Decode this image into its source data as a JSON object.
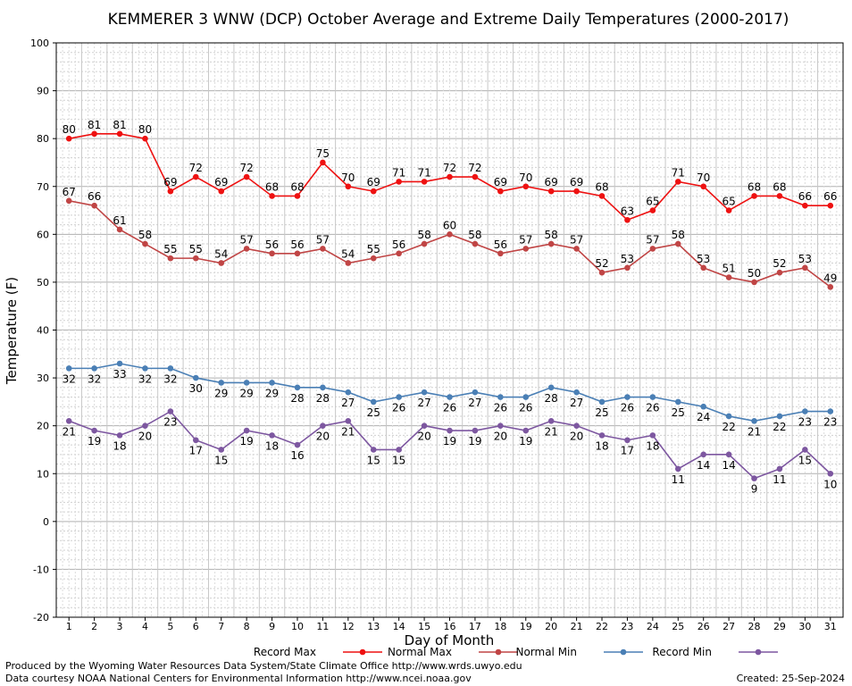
{
  "chart_data": {
    "type": "line",
    "title": "KEMMERER 3 WNW (DCP) October Average and Extreme Daily Temperatures (2000-2017)",
    "xlabel": "Day of Month",
    "ylabel": "Temperature (F)",
    "ylim": [
      -20,
      100
    ],
    "yticks": [
      -20,
      -10,
      0,
      10,
      20,
      30,
      40,
      50,
      60,
      70,
      80,
      90,
      100
    ],
    "grid": true,
    "legend_position": "bottom",
    "x": [
      1,
      2,
      3,
      4,
      5,
      6,
      7,
      8,
      9,
      10,
      11,
      12,
      13,
      14,
      15,
      16,
      17,
      18,
      19,
      20,
      21,
      22,
      23,
      24,
      25,
      26,
      27,
      28,
      29,
      30,
      31
    ],
    "series": [
      {
        "name": "Record Max",
        "color": "#ee1111",
        "label_pos": "above",
        "values": [
          80,
          81,
          81,
          80,
          69,
          72,
          69,
          72,
          68,
          68,
          75,
          70,
          69,
          71,
          71,
          72,
          72,
          69,
          70,
          69,
          69,
          68,
          63,
          65,
          71,
          70,
          65,
          68,
          68,
          66,
          66
        ]
      },
      {
        "name": "Normal Max",
        "color": "#c04545",
        "label_pos": "above",
        "values": [
          67,
          66,
          61,
          58,
          55,
          55,
          54,
          57,
          56,
          56,
          57,
          54,
          55,
          56,
          58,
          60,
          58,
          56,
          57,
          58,
          57,
          52,
          53,
          57,
          58,
          53,
          51,
          50,
          52,
          53,
          49
        ]
      },
      {
        "name": "Normal Min",
        "color": "#4a7fb5",
        "label_pos": "below",
        "values": [
          32,
          32,
          33,
          32,
          32,
          30,
          29,
          29,
          29,
          28,
          28,
          27,
          25,
          26,
          27,
          26,
          27,
          26,
          26,
          28,
          27,
          25,
          26,
          26,
          25,
          24,
          22,
          21,
          22,
          23,
          23
        ]
      },
      {
        "name": "Record Min",
        "color": "#7d57a0",
        "label_pos": "below",
        "values": [
          21,
          19,
          18,
          20,
          23,
          17,
          15,
          19,
          18,
          16,
          20,
          21,
          15,
          15,
          20,
          19,
          19,
          20,
          19,
          21,
          20,
          18,
          17,
          18,
          11,
          14,
          14,
          9,
          11,
          15,
          10
        ]
      }
    ]
  },
  "footer": {
    "produced_by": "Produced by the Wyoming Water Resources Data System/State Climate Office http://www.wrds.uwyo.edu",
    "data_courtesy": "Data courtesy NOAA National Centers for Environmental Information http://www.ncei.noaa.gov",
    "created": "Created:  25-Sep-2024"
  }
}
